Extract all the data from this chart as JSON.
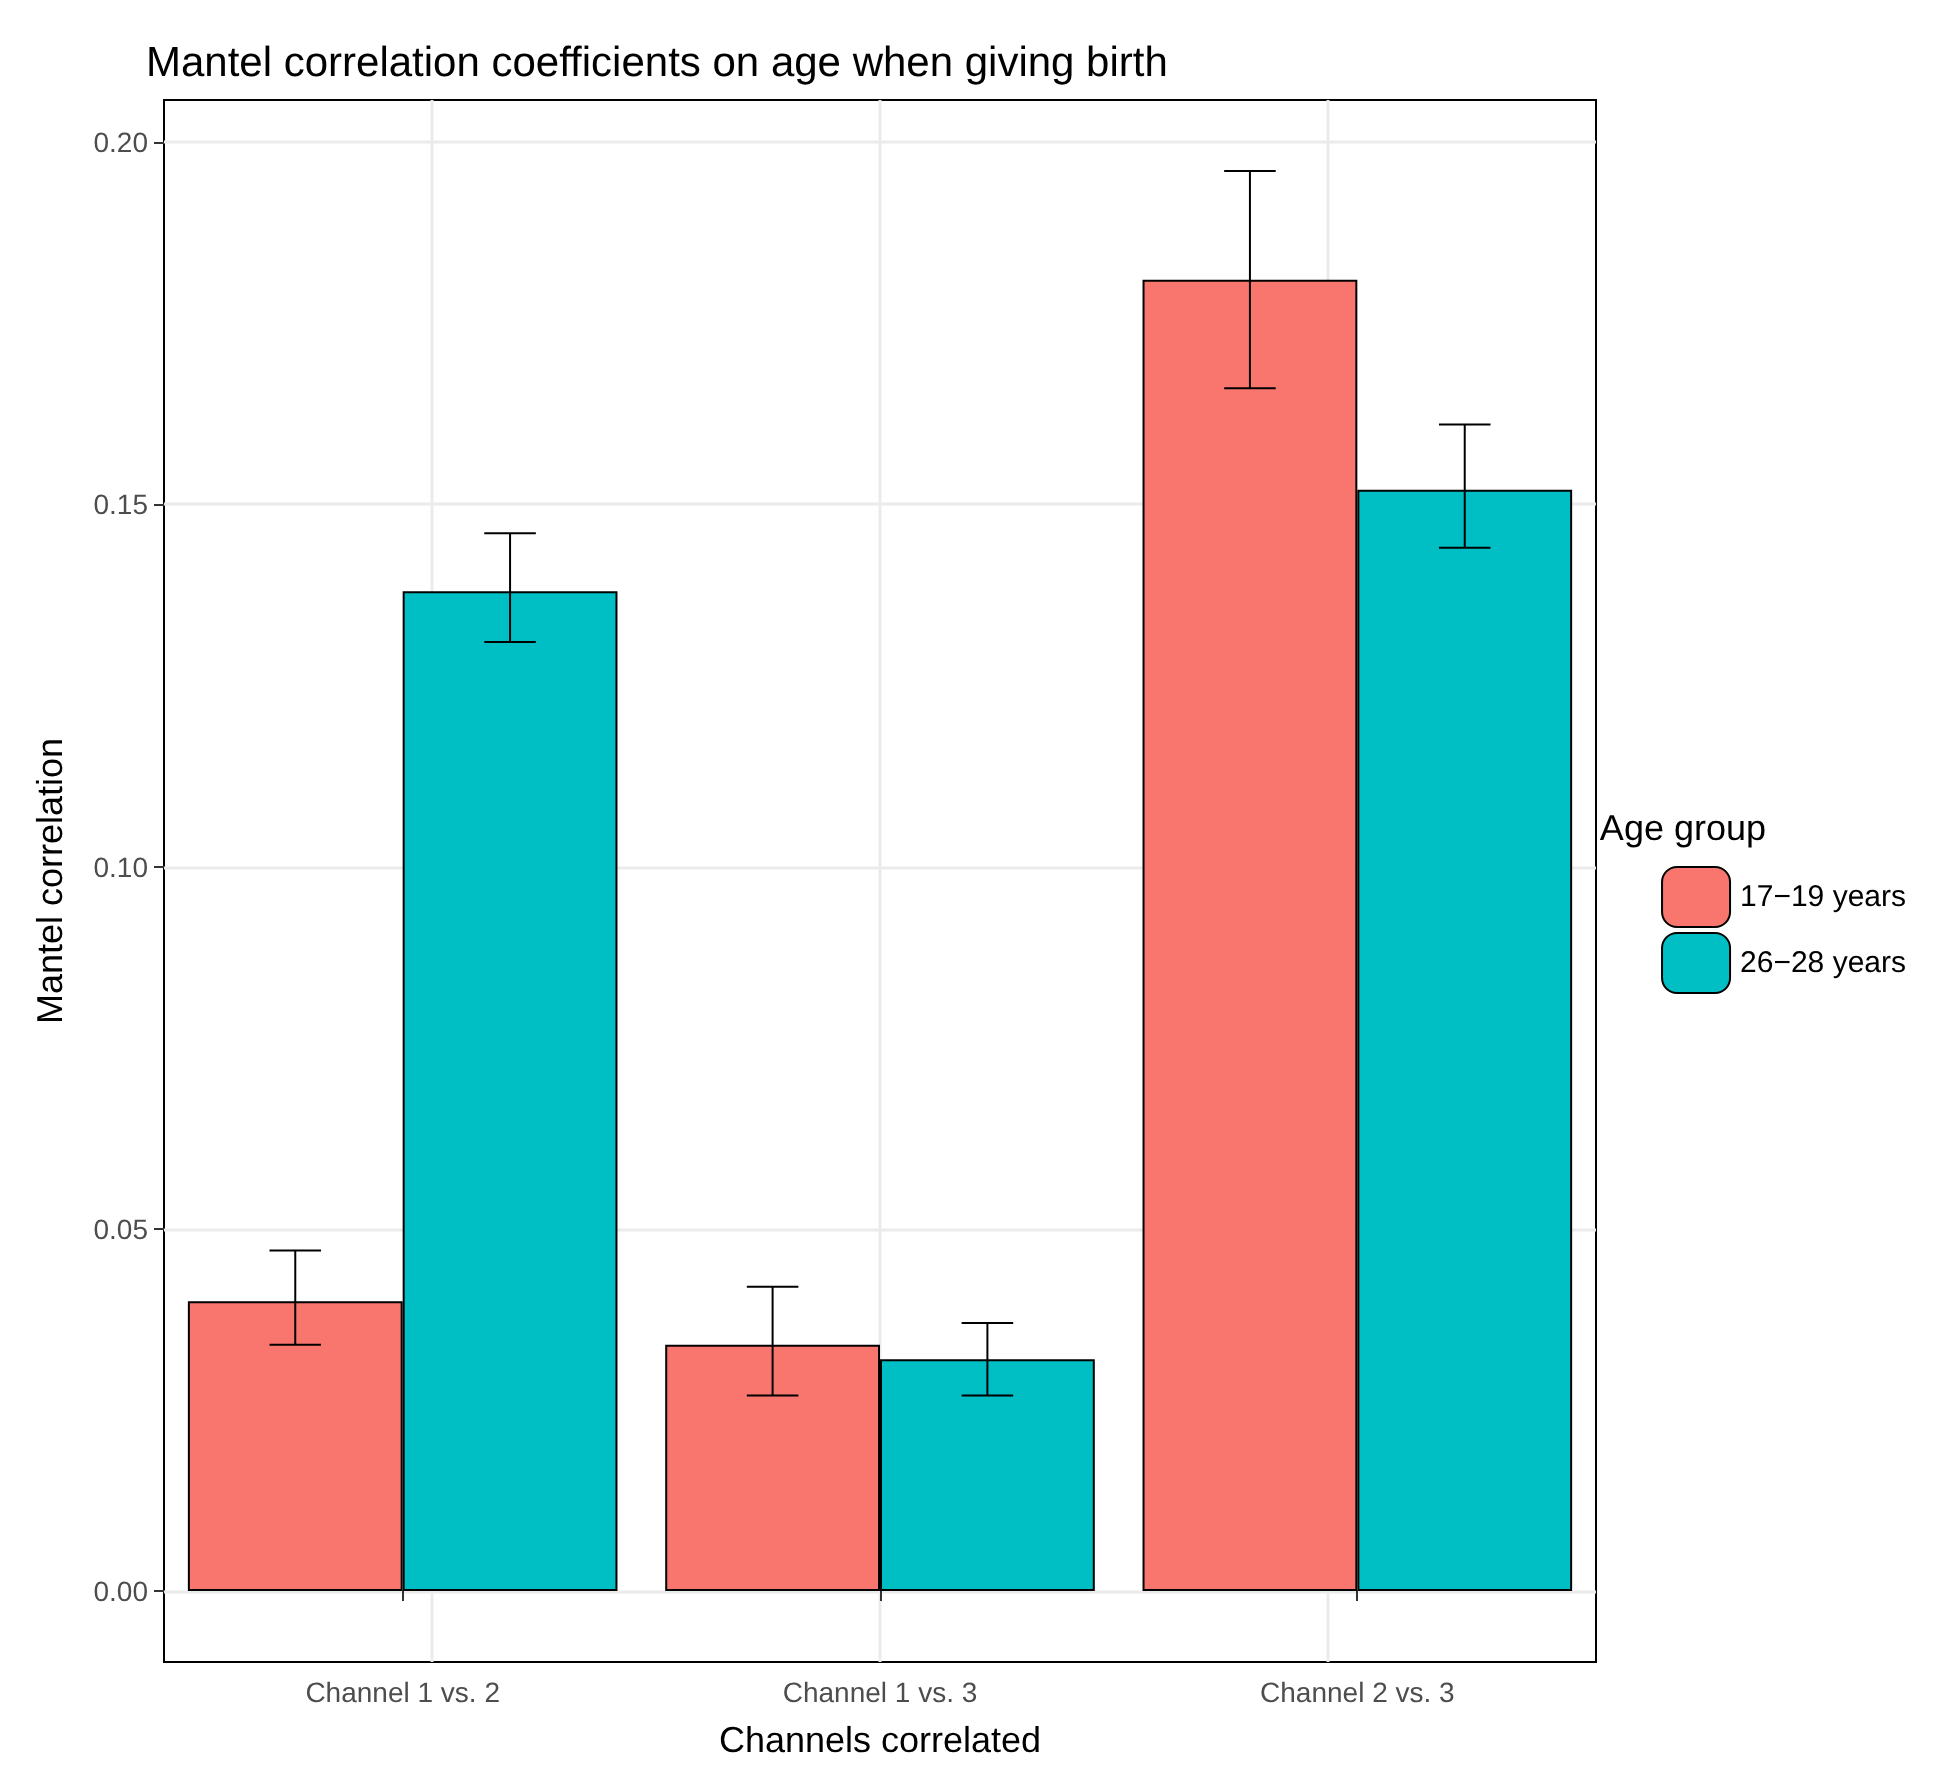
{
  "chart_data": {
    "type": "bar",
    "title": "Mantel correlation coefficients on age when giving birth",
    "xlabel": "Channels correlated",
    "ylabel": "Mantel correlation",
    "legend_title": "Age group",
    "categories": [
      "Channel 1 vs. 2",
      "Channel 1 vs. 3",
      "Channel 2 vs. 3"
    ],
    "series": [
      {
        "name": "17−19 years",
        "color": "#f8766d",
        "values": [
          0.04,
          0.034,
          0.181
        ],
        "errors": [
          [
            0.034,
            0.047
          ],
          [
            0.027,
            0.042
          ],
          [
            0.166,
            0.196
          ]
        ]
      },
      {
        "name": "26−28 years",
        "color": "#00bfc4",
        "values": [
          0.138,
          0.032,
          0.152
        ],
        "errors": [
          [
            0.131,
            0.146
          ],
          [
            0.027,
            0.037
          ],
          [
            0.144,
            0.161
          ]
        ]
      }
    ],
    "ylim": [
      -0.0098,
      0.2058
    ],
    "yticks": [
      {
        "value": 0,
        "label": "0.00"
      },
      {
        "value": 0.05,
        "label": "0.05"
      },
      {
        "value": 0.1,
        "label": "0.10"
      },
      {
        "value": 0.15,
        "label": "0.15"
      },
      {
        "value": 0.2,
        "label": "0.20"
      }
    ],
    "grid": true,
    "legend": "right"
  }
}
